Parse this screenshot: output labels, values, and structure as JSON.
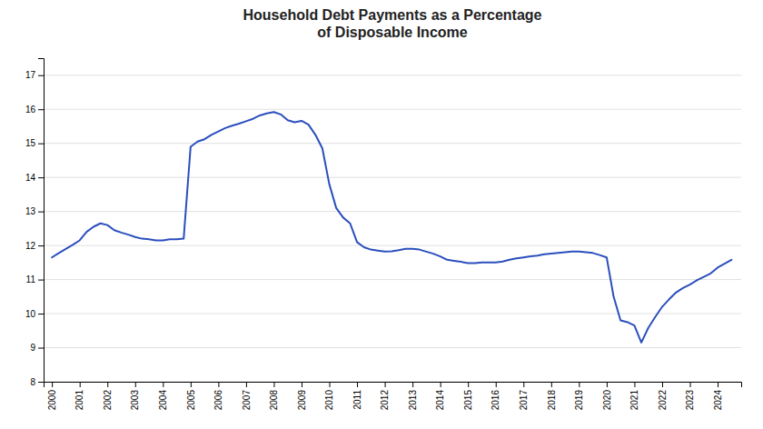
{
  "chart_data": {
    "type": "line",
    "title": "Household Debt Payments as a Percentage\nof Disposable Income",
    "x": [
      2000.0,
      2000.25,
      2000.5,
      2000.75,
      2001.0,
      2001.25,
      2001.5,
      2001.75,
      2002.0,
      2002.25,
      2002.5,
      2002.75,
      2003.0,
      2003.25,
      2003.5,
      2003.75,
      2004.0,
      2004.25,
      2004.5,
      2004.75,
      2005.0,
      2005.25,
      2005.5,
      2005.75,
      2006.0,
      2006.25,
      2006.5,
      2006.75,
      2007.0,
      2007.25,
      2007.5,
      2007.75,
      2008.0,
      2008.25,
      2008.5,
      2008.75,
      2009.0,
      2009.25,
      2009.5,
      2009.75,
      2010.0,
      2010.25,
      2010.5,
      2010.75,
      2011.0,
      2011.25,
      2011.5,
      2011.75,
      2012.0,
      2012.25,
      2012.5,
      2012.75,
      2013.0,
      2013.25,
      2013.5,
      2013.75,
      2014.0,
      2014.25,
      2014.5,
      2014.75,
      2015.0,
      2015.25,
      2015.5,
      2015.75,
      2016.0,
      2016.25,
      2016.5,
      2016.75,
      2017.0,
      2017.25,
      2017.5,
      2017.75,
      2018.0,
      2018.25,
      2018.5,
      2018.75,
      2019.0,
      2019.25,
      2019.5,
      2019.75,
      2020.0,
      2020.25,
      2020.5,
      2020.75,
      2021.0,
      2021.25,
      2021.5,
      2021.75,
      2022.0,
      2022.25,
      2022.5,
      2022.75,
      2023.0,
      2023.25,
      2023.5,
      2023.75,
      2024.0,
      2024.5
    ],
    "values": [
      11.65,
      11.78,
      11.9,
      12.02,
      12.15,
      12.4,
      12.55,
      12.65,
      12.6,
      12.45,
      12.38,
      12.32,
      12.25,
      12.2,
      12.18,
      12.15,
      12.15,
      12.18,
      12.18,
      12.2,
      14.9,
      15.05,
      15.12,
      15.25,
      15.35,
      15.45,
      15.52,
      15.58,
      15.65,
      15.72,
      15.82,
      15.88,
      15.92,
      15.85,
      15.68,
      15.62,
      15.66,
      15.55,
      15.25,
      14.85,
      13.8,
      13.1,
      12.82,
      12.65,
      12.1,
      11.95,
      11.88,
      11.85,
      11.82,
      11.83,
      11.86,
      11.9,
      11.9,
      11.88,
      11.82,
      11.76,
      11.68,
      11.58,
      11.55,
      11.52,
      11.48,
      11.48,
      11.5,
      11.5,
      11.5,
      11.53,
      11.58,
      11.62,
      11.65,
      11.68,
      11.7,
      11.74,
      11.76,
      11.78,
      11.8,
      11.82,
      11.82,
      11.8,
      11.78,
      11.72,
      11.65,
      10.5,
      9.8,
      9.75,
      9.65,
      9.15,
      9.58,
      9.9,
      10.2,
      10.42,
      10.62,
      10.75,
      10.85,
      10.98,
      11.08,
      11.18,
      11.35,
      11.58
    ],
    "color": "#2b4fbd",
    "xlim": [
      1999.7,
      2024.85
    ],
    "xticks": [
      2000,
      2001,
      2002,
      2003,
      2004,
      2005,
      2006,
      2007,
      2008,
      2009,
      2010,
      2011,
      2012,
      2013,
      2014,
      2015,
      2016,
      2017,
      2018,
      2019,
      2020,
      2021,
      2022,
      2023,
      2024
    ],
    "ylim": [
      8,
      17.5
    ],
    "yticks": [
      8,
      9,
      10,
      11,
      12,
      13,
      14,
      15,
      16,
      17
    ],
    "grid": true
  }
}
